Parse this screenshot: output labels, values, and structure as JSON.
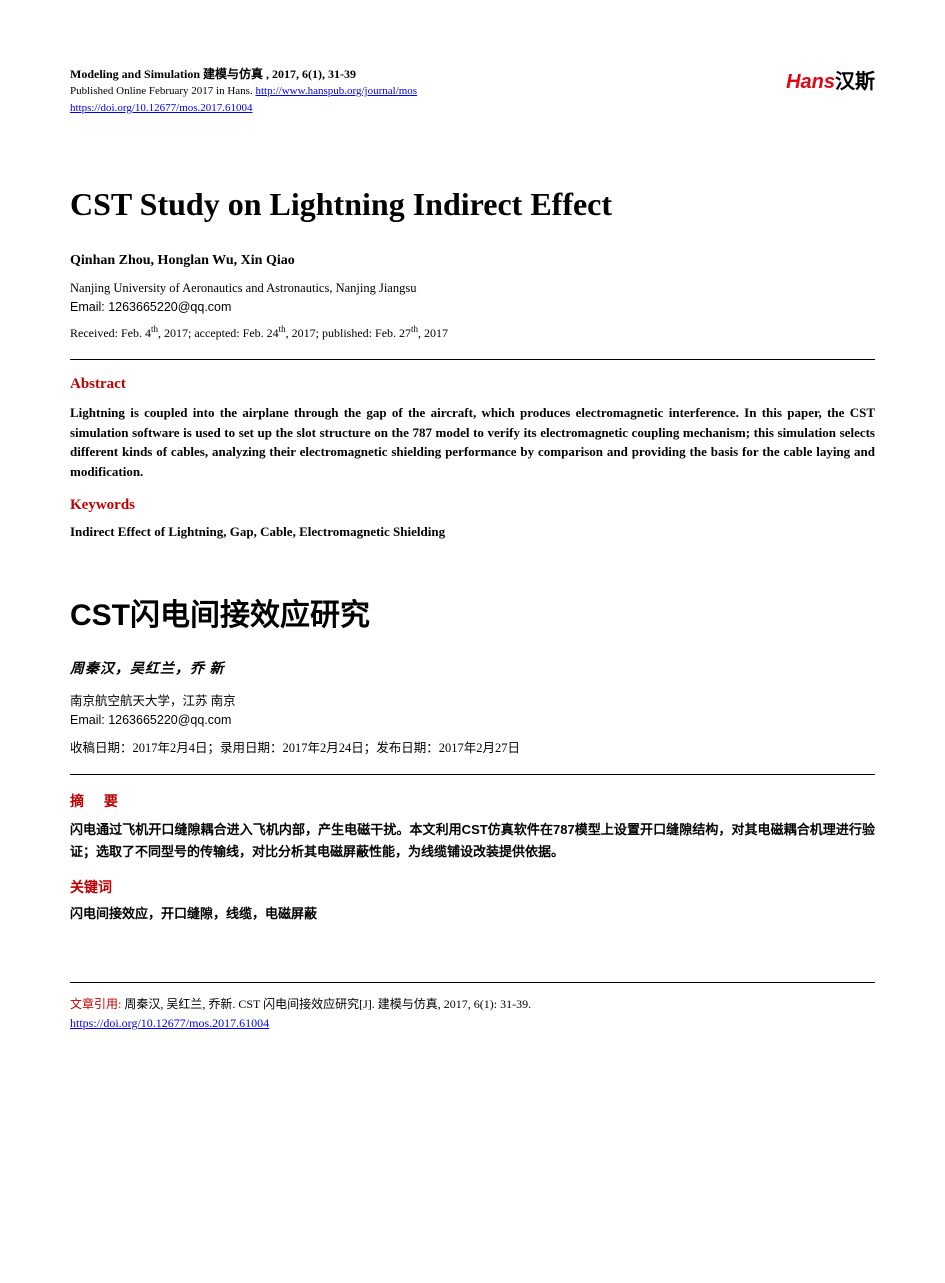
{
  "header": {
    "journal_en": "Modeling and Simulation",
    "journal_cn": "建模与仿真",
    "issue": ", 2017, 6(1), 31-39",
    "published_prefix": "Published Online February 2017 in Hans. ",
    "journal_url": "http://www.hanspub.org/journal/mos",
    "doi_url": "https://doi.org/10.12677/mos.2017.61004",
    "logo_red": "Hans",
    "logo_black": "汉斯"
  },
  "en": {
    "title": "CST Study on Lightning Indirect Effect",
    "authors": "Qinhan Zhou, Honglan Wu, Xin Qiao",
    "affiliation": "Nanjing University of Aeronautics and Astronautics, Nanjing Jiangsu",
    "email_label": "Email: ",
    "email": "1263665220@qq.com",
    "received_label": "Received: Feb. 4",
    "received_sup": "th",
    "received_year": ", 2017; ",
    "accepted_label": "accepted: Feb. 24",
    "accepted_sup": "th",
    "accepted_year": ", 2017; ",
    "published_label": "published: Feb. 27",
    "published_sup": "th",
    "published_year": ", 2017",
    "abstract_heading": "Abstract",
    "abstract_text": "Lightning is coupled into the airplane through the gap of the aircraft, which produces electromagnetic interference. In this paper, the CST simulation software is used to set up the slot structure on the 787 model to verify its electromagnetic coupling mechanism; this simulation selects different kinds of cables, analyzing their electromagnetic shielding performance by comparison and providing the basis for the cable laying and modification.",
    "keywords_heading": "Keywords",
    "keywords_text": "Indirect Effect of Lightning, Gap, Cable, Electromagnetic Shielding"
  },
  "cn": {
    "title": "CST闪电间接效应研究",
    "authors": "周秦汉，吴红兰，乔  新",
    "affiliation": "南京航空航天大学，江苏 南京",
    "email_label": "Email: ",
    "email": "1263665220@qq.com",
    "dates": "收稿日期：2017年2月4日；录用日期：2017年2月24日；发布日期：2017年2月27日",
    "abstract_heading": "摘  要",
    "abstract_text": "闪电通过飞机开口缝隙耦合进入飞机内部，产生电磁干扰。本文利用CST仿真软件在787模型上设置开口缝隙结构，对其电磁耦合机理进行验证；选取了不同型号的传输线，对比分析其电磁屏蔽性能，为线缆铺设改装提供依据。",
    "keywords_heading": "关键词",
    "keywords_text": "闪电间接效应，开口缝隙，线缆，电磁屏蔽"
  },
  "citation": {
    "label": "文章引用: ",
    "text": "周秦汉, 吴红兰, 乔新. CST 闪电间接效应研究[J]. 建模与仿真, 2017, 6(1): 31-39.",
    "doi_url": "https://doi.org/10.12677/mos.2017.61004"
  }
}
